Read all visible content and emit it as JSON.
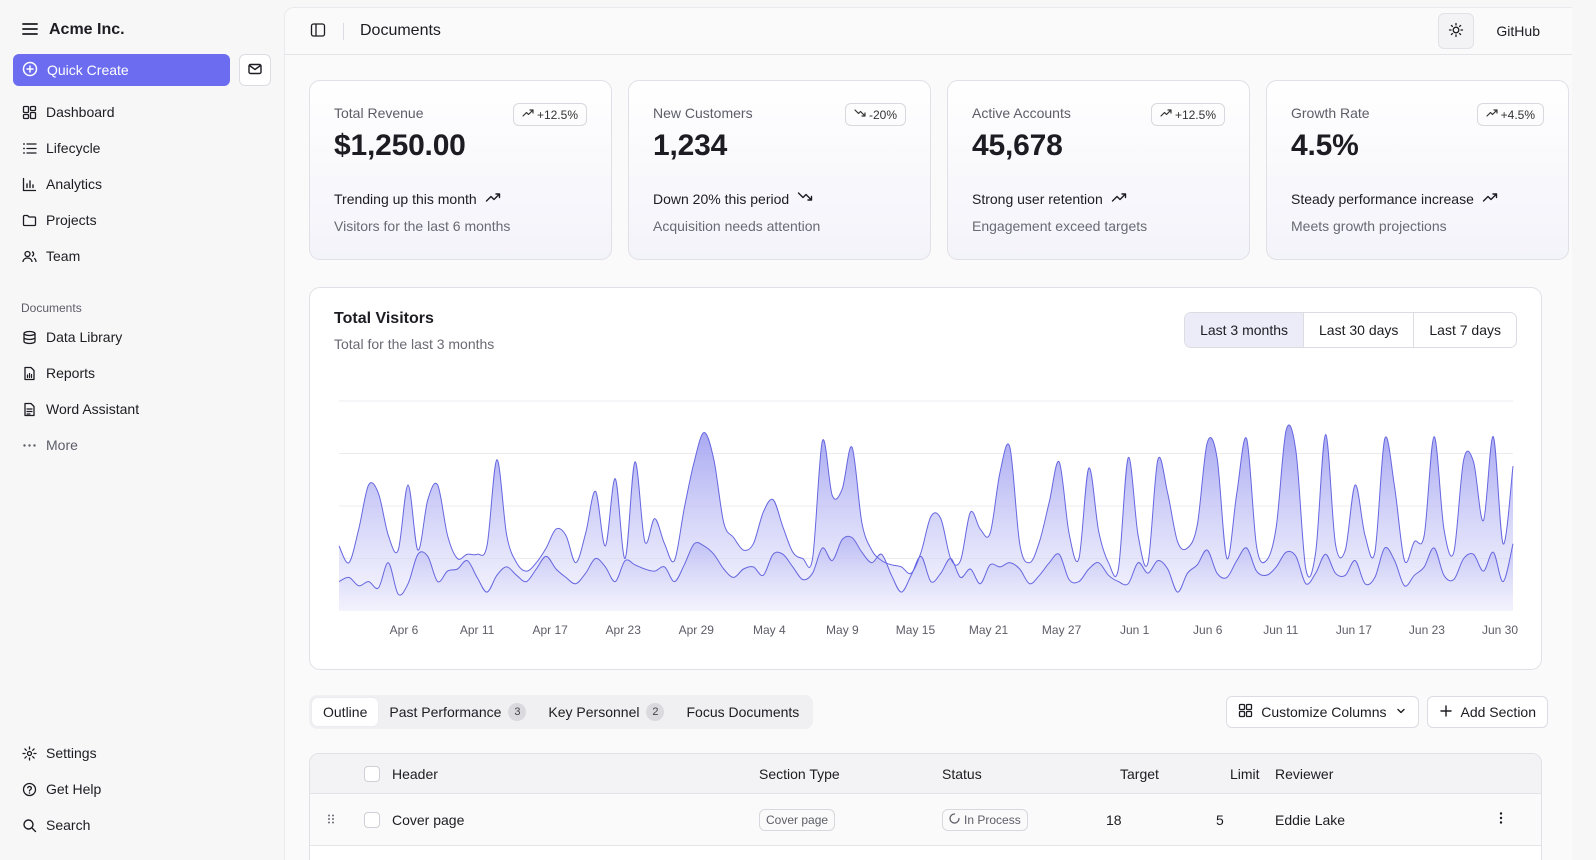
{
  "sidebar": {
    "brand": "Acme Inc.",
    "quick_create": "Quick Create",
    "nav": [
      {
        "label": "Dashboard",
        "icon": "dashboard-icon"
      },
      {
        "label": "Lifecycle",
        "icon": "list-icon"
      },
      {
        "label": "Analytics",
        "icon": "bar-chart-icon"
      },
      {
        "label": "Projects",
        "icon": "folder-icon"
      },
      {
        "label": "Team",
        "icon": "users-icon"
      }
    ],
    "documents_label": "Documents",
    "documents": [
      {
        "label": "Data Library",
        "icon": "database-icon"
      },
      {
        "label": "Reports",
        "icon": "report-icon"
      },
      {
        "label": "Word Assistant",
        "icon": "file-text-icon"
      }
    ],
    "more": "More",
    "bottom": [
      {
        "label": "Settings",
        "icon": "gear-icon"
      },
      {
        "label": "Get Help",
        "icon": "help-icon"
      },
      {
        "label": "Search",
        "icon": "search-icon"
      }
    ]
  },
  "topbar": {
    "title": "Documents",
    "github": "GitHub"
  },
  "cards": [
    {
      "label": "Total Revenue",
      "value": "$1,250.00",
      "badge": "+12.5%",
      "trend": "up",
      "foot1": "Trending up this month",
      "foot2": "Visitors for the last 6 months"
    },
    {
      "label": "New Customers",
      "value": "1,234",
      "badge": "-20%",
      "trend": "down",
      "foot1": "Down 20% this period",
      "foot2": "Acquisition needs attention"
    },
    {
      "label": "Active Accounts",
      "value": "45,678",
      "badge": "+12.5%",
      "trend": "up",
      "foot1": "Strong user retention",
      "foot2": "Engagement exceed targets"
    },
    {
      "label": "Growth Rate",
      "value": "4.5%",
      "badge": "+4.5%",
      "trend": "up",
      "foot1": "Steady performance increase",
      "foot2": "Meets growth projections"
    }
  ],
  "visitors": {
    "title": "Total Visitors",
    "subtitle": "Total for the last 3 months",
    "ranges": [
      "Last 3 months",
      "Last 30 days",
      "Last 7 days"
    ],
    "selected_range": "Last 3 months"
  },
  "chart_data": {
    "type": "area",
    "title": "Total Visitors",
    "subtitle": "Total for the last 3 months",
    "x_ticks": [
      "Apr 6",
      "Apr 11",
      "Apr 17",
      "Apr 23",
      "Apr 29",
      "May 4",
      "May 9",
      "May 15",
      "May 21",
      "May 27",
      "Jun 1",
      "Jun 6",
      "Jun 11",
      "Jun 17",
      "Jun 23",
      "Jun 30"
    ],
    "grid": true,
    "ylim": [
      0,
      1
    ],
    "series": [
      {
        "values": [
          0.31,
          0.23,
          0.39,
          0.6,
          0.56,
          0.36,
          0.29,
          0.6,
          0.29,
          0.53,
          0.6,
          0.36,
          0.25,
          0.27,
          0.27,
          0.31,
          0.72,
          0.36,
          0.23,
          0.19,
          0.23,
          0.3,
          0.39,
          0.36,
          0.23,
          0.37,
          0.57,
          0.31,
          0.63,
          0.25,
          0.71,
          0.33,
          0.44,
          0.32,
          0.24,
          0.49,
          0.71,
          0.85,
          0.72,
          0.42,
          0.35,
          0.29,
          0.32,
          0.47,
          0.53,
          0.4,
          0.28,
          0.25,
          0.25,
          0.81,
          0.55,
          0.58,
          0.78,
          0.42,
          0.29,
          0.24,
          0.22,
          0.21,
          0.18,
          0.28,
          0.45,
          0.44,
          0.25,
          0.24,
          0.47,
          0.39,
          0.37,
          0.66,
          0.78,
          0.32,
          0.23,
          0.33,
          0.52,
          0.71,
          0.37,
          0.25,
          0.68,
          0.38,
          0.23,
          0.2,
          0.73,
          0.36,
          0.23,
          0.72,
          0.56,
          0.33,
          0.3,
          0.41,
          0.8,
          0.73,
          0.25,
          0.56,
          0.82,
          0.31,
          0.24,
          0.4,
          0.86,
          0.76,
          0.2,
          0.28,
          0.84,
          0.32,
          0.29,
          0.6,
          0.36,
          0.28,
          0.82,
          0.59,
          0.24,
          0.33,
          0.36,
          0.83,
          0.39,
          0.28,
          0.72,
          0.71,
          0.43,
          0.83,
          0.32,
          0.69
        ]
      },
      {
        "values": [
          0.14,
          0.16,
          0.12,
          0.14,
          0.11,
          0.23,
          0.08,
          0.13,
          0.27,
          0.26,
          0.14,
          0.19,
          0.2,
          0.24,
          0.16,
          0.09,
          0.17,
          0.21,
          0.17,
          0.14,
          0.2,
          0.26,
          0.2,
          0.16,
          0.13,
          0.18,
          0.25,
          0.21,
          0.14,
          0.24,
          0.22,
          0.2,
          0.19,
          0.21,
          0.14,
          0.22,
          0.32,
          0.31,
          0.27,
          0.2,
          0.16,
          0.2,
          0.21,
          0.17,
          0.27,
          0.27,
          0.21,
          0.15,
          0.18,
          0.3,
          0.24,
          0.34,
          0.35,
          0.28,
          0.23,
          0.27,
          0.17,
          0.09,
          0.17,
          0.26,
          0.14,
          0.18,
          0.25,
          0.16,
          0.2,
          0.13,
          0.22,
          0.21,
          0.23,
          0.2,
          0.13,
          0.17,
          0.23,
          0.27,
          0.15,
          0.14,
          0.2,
          0.23,
          0.17,
          0.14,
          0.13,
          0.23,
          0.18,
          0.24,
          0.2,
          0.09,
          0.18,
          0.22,
          0.29,
          0.18,
          0.16,
          0.24,
          0.3,
          0.19,
          0.17,
          0.21,
          0.28,
          0.26,
          0.13,
          0.18,
          0.27,
          0.18,
          0.17,
          0.24,
          0.13,
          0.16,
          0.3,
          0.24,
          0.12,
          0.17,
          0.21,
          0.3,
          0.17,
          0.15,
          0.25,
          0.27,
          0.19,
          0.28,
          0.14,
          0.32
        ]
      }
    ],
    "colors": {
      "stroke": "#6666e0",
      "fill_top": "#9a9af0",
      "fill_bottom": "#ececfc"
    }
  },
  "table_tabs": [
    {
      "label": "Outline",
      "count": null,
      "active": true
    },
    {
      "label": "Past Performance",
      "count": "3",
      "active": false
    },
    {
      "label": "Key Personnel",
      "count": "2",
      "active": false
    },
    {
      "label": "Focus Documents",
      "count": null,
      "active": false
    }
  ],
  "table_actions": {
    "customize": "Customize Columns",
    "add": "Add Section"
  },
  "table": {
    "columns": [
      "Header",
      "Section Type",
      "Status",
      "Target",
      "Limit",
      "Reviewer"
    ],
    "rows": [
      {
        "header": "Cover page",
        "type": "Cover page",
        "status": "In Process",
        "target": "18",
        "limit": "5",
        "reviewer": "Eddie Lake"
      }
    ]
  }
}
